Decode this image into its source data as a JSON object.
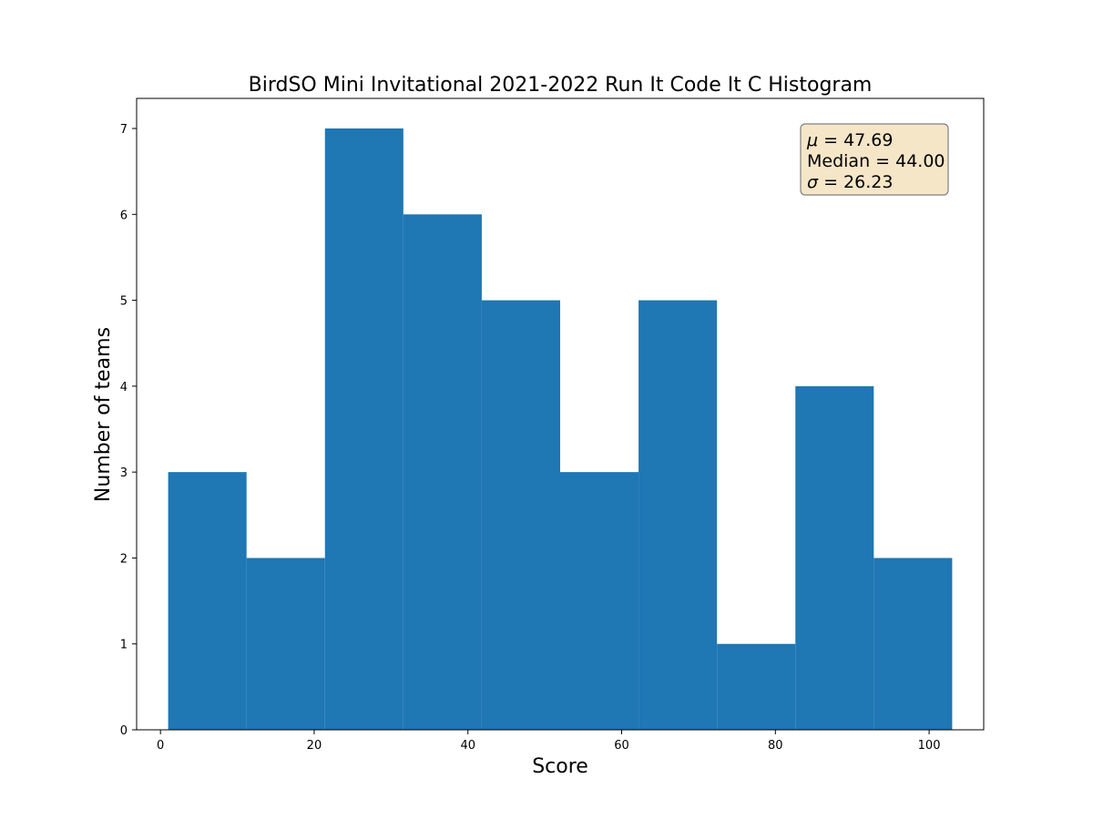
{
  "chart_data": {
    "type": "bar",
    "title": "BirdSO Mini Invitational 2021-2022 Run It Code It C Histogram",
    "xlabel": "Score",
    "ylabel": "Number of teams",
    "bin_edges": [
      1,
      11.2,
      21.4,
      31.6,
      41.8,
      52,
      62.2,
      72.4,
      82.6,
      92.8,
      103
    ],
    "values": [
      3,
      2,
      7,
      6,
      5,
      3,
      5,
      1,
      4,
      2
    ],
    "xlim": [
      -3.1,
      107.1
    ],
    "ylim": [
      0,
      7.35
    ],
    "xticks": [
      0,
      20,
      40,
      60,
      80,
      100
    ],
    "yticks": [
      0,
      1,
      2,
      3,
      4,
      5,
      6,
      7
    ],
    "grid": false,
    "color": "#1f77b4",
    "stats_box": {
      "position": "top-right",
      "background": "#f5e6c8",
      "lines": [
        {
          "symbol": "μ",
          "eq": " = ",
          "value": "47.69"
        },
        {
          "symbol": "Median",
          "eq": " = ",
          "value": "44.00"
        },
        {
          "symbol": "σ",
          "eq": " = ",
          "value": "26.23"
        }
      ]
    }
  }
}
